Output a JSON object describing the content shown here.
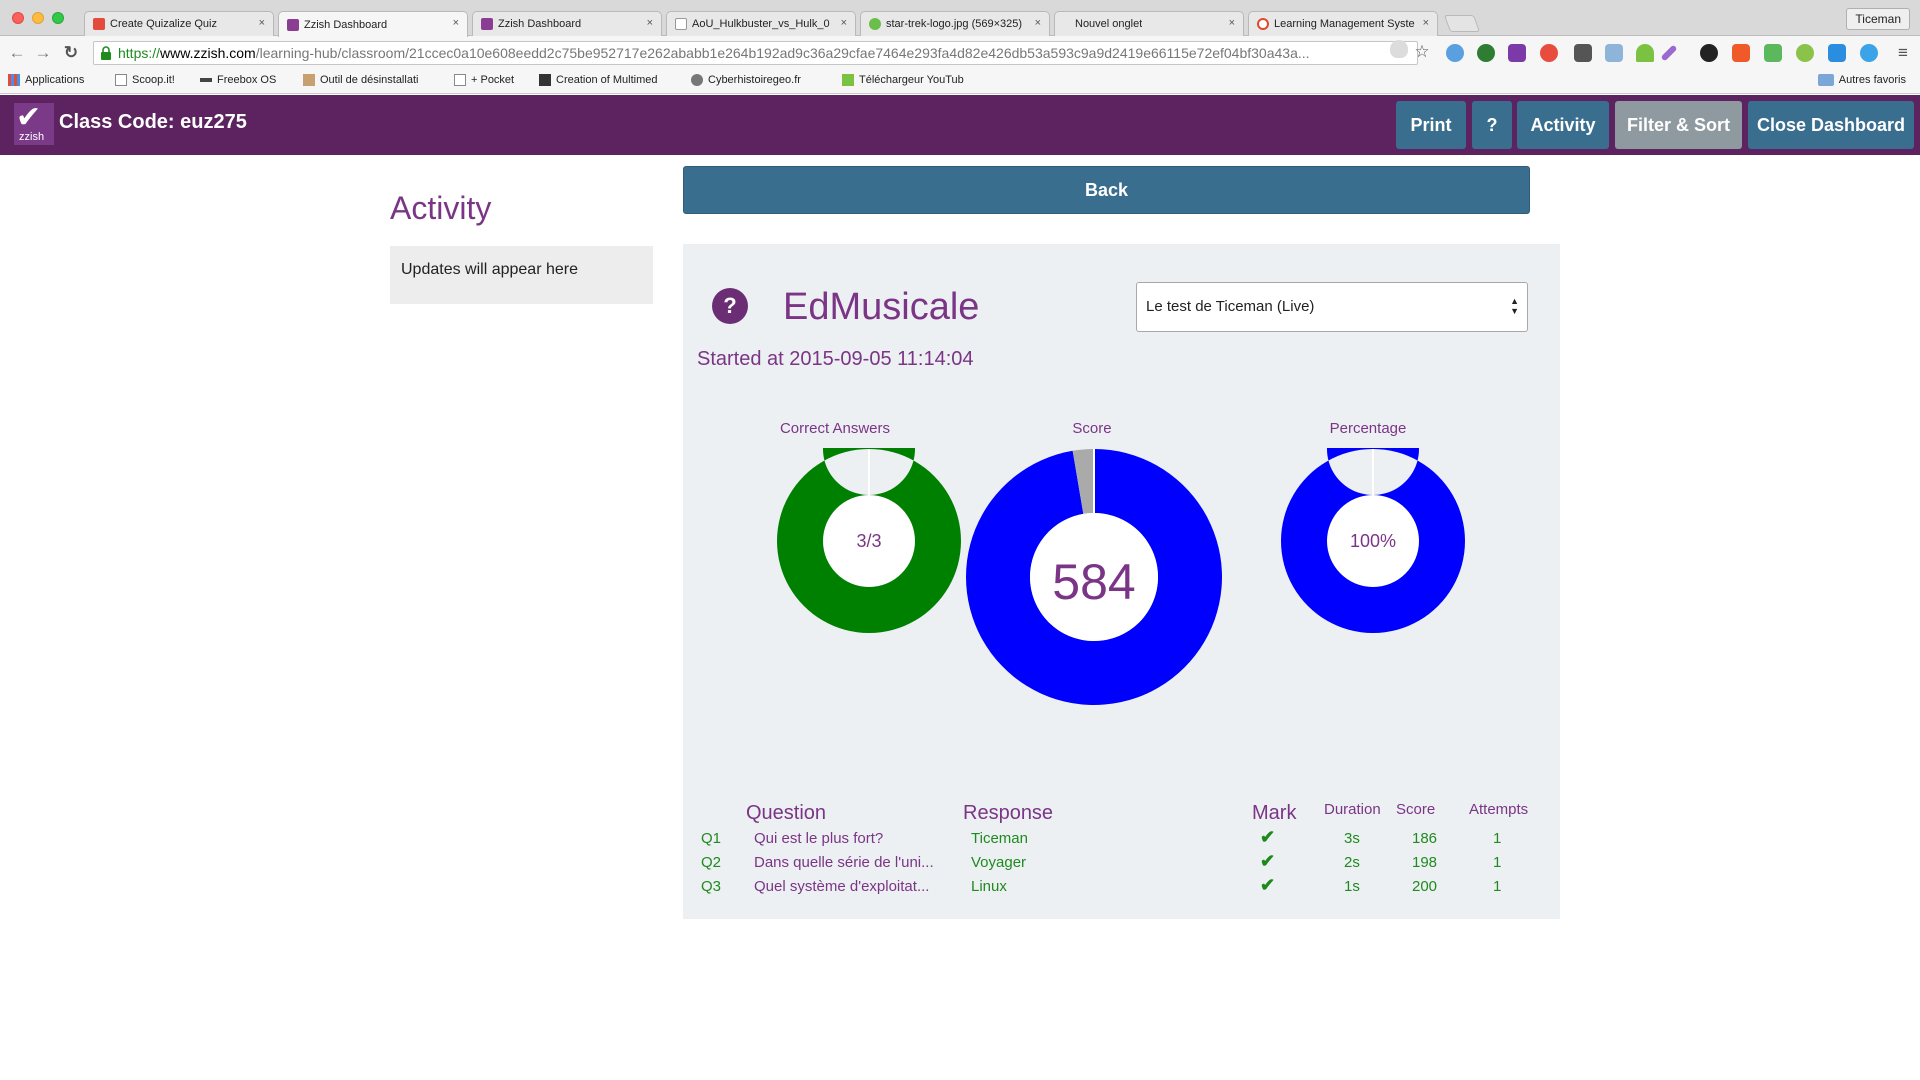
{
  "browser": {
    "tabs": [
      {
        "title": "Create Quizalize Quiz",
        "active": false,
        "color": "#e34c3c"
      },
      {
        "title": "Zzish Dashboard",
        "active": true,
        "color": "#8b3d93"
      },
      {
        "title": "Zzish Dashboard",
        "active": false,
        "color": "#8b3d93"
      },
      {
        "title": "AoU_Hulkbuster_vs_Hulk_0",
        "active": false,
        "color": "#cccccc"
      },
      {
        "title": "star-trek-logo.jpg (569×325)",
        "active": false,
        "color": "#6abf4b"
      },
      {
        "title": "Nouvel onglet",
        "active": false,
        "color": ""
      },
      {
        "title": "Learning Management Syste",
        "active": false,
        "color": "#e04a2a"
      }
    ],
    "tab_close": "×",
    "profile": "Ticeman",
    "url": {
      "scheme": "https://",
      "host": "www.zzish.com",
      "path": "/learning-hub/classroom/21ccec0a10e608eedd2c75be952717e262ababb1e264b192ad9c36a29cfae7464e293fa4d82e426db53a593c9a9d2419e66115e72ef04bf30a43a..."
    },
    "nav": {
      "back": "←",
      "forward": "→",
      "reload": "↻",
      "star": "☆",
      "menu": "≡"
    },
    "bookmarks": [
      {
        "label": "Applications"
      },
      {
        "label": "Scoop.it!"
      },
      {
        "label": "Freebox OS"
      },
      {
        "label": "Outil de désinstallati"
      },
      {
        "label": "+ Pocket"
      },
      {
        "label": "Creation of Multimed"
      },
      {
        "label": "Cyberhistoiregeo.fr"
      },
      {
        "label": "Téléchargeur YouTub"
      }
    ],
    "bookmarks_other": "Autres favoris"
  },
  "header": {
    "logo_text": "zzish",
    "logo_check": "✔",
    "class_code": "Class Code: euz275",
    "buttons": {
      "print": "Print",
      "help": "?",
      "activity": "Activity",
      "filter_sort": "Filter & Sort",
      "close": "Close Dashboard"
    }
  },
  "sidebar": {
    "title": "Activity",
    "updates": "Updates will appear here"
  },
  "main": {
    "back": "Back",
    "quiz_icon": "?",
    "quiz_name": "EdMusicale",
    "started": "Started at 2015-09-05 11:14:04",
    "select_value": "Le test de Ticeman (Live)",
    "select_arrows": "▲▼"
  },
  "chart_data": [
    {
      "type": "pie",
      "title": "Correct Answers",
      "center_label": "3/3",
      "slices": [
        {
          "value": 3,
          "color": "#008000"
        },
        {
          "value": 0,
          "color": "#aaaaaa"
        }
      ]
    },
    {
      "type": "pie",
      "title": "Score",
      "center_label": "584",
      "slices": [
        {
          "value": 584,
          "color": "#0000ff"
        },
        {
          "value": 16,
          "color": "#aaaaaa"
        }
      ]
    },
    {
      "type": "pie",
      "title": "Percentage",
      "center_label": "100%",
      "slices": [
        {
          "value": 100,
          "color": "#0000ff"
        },
        {
          "value": 0,
          "color": "#aaaaaa"
        }
      ]
    }
  ],
  "results": {
    "headers": {
      "question": "Question",
      "response": "Response",
      "mark": "Mark",
      "duration": "Duration",
      "score": "Score",
      "attempts": "Attempts"
    },
    "mark_symbol": "✔",
    "rows": [
      {
        "q": "Q1",
        "question": "Qui est le plus fort?",
        "response": "Ticeman",
        "duration": "3s",
        "score": "186",
        "attempts": "1"
      },
      {
        "q": "Q2",
        "question": "Dans quelle série de l'uni...",
        "response": "Voyager",
        "duration": "2s",
        "score": "198",
        "attempts": "1"
      },
      {
        "q": "Q3",
        "question": "Quel système d'exploitat...",
        "response": "Linux",
        "duration": "1s",
        "score": "200",
        "attempts": "1"
      }
    ]
  }
}
